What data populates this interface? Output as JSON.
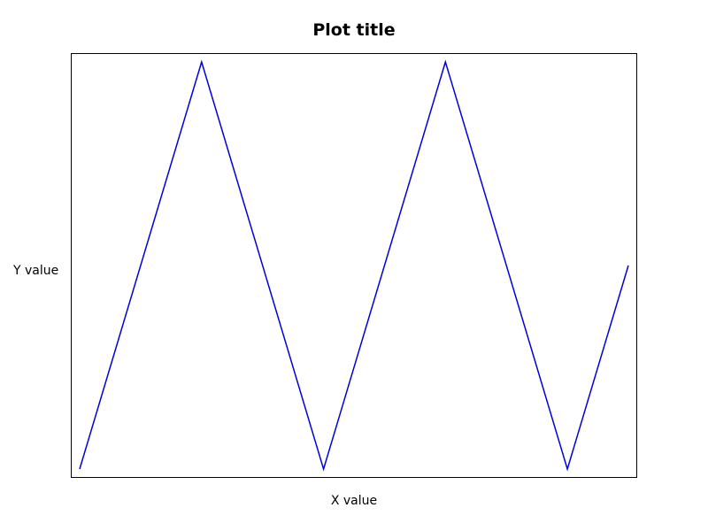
{
  "chart_data": {
    "type": "line",
    "title": "Plot title",
    "xlabel": "X value",
    "ylabel": "Y value",
    "x_ticks_shown": false,
    "y_ticks_shown": false,
    "grid": false,
    "legend": "none",
    "line_color": "#0000dd",
    "frame_color": "#000000",
    "xlim": [
      0,
      4.5
    ],
    "ylim": [
      -0.0217,
      1.0217
    ],
    "series": [
      {
        "x": [
          0,
          1,
          2,
          3,
          4,
          4.5
        ],
        "y": [
          0,
          1,
          0,
          1,
          0,
          0.5
        ]
      }
    ]
  }
}
